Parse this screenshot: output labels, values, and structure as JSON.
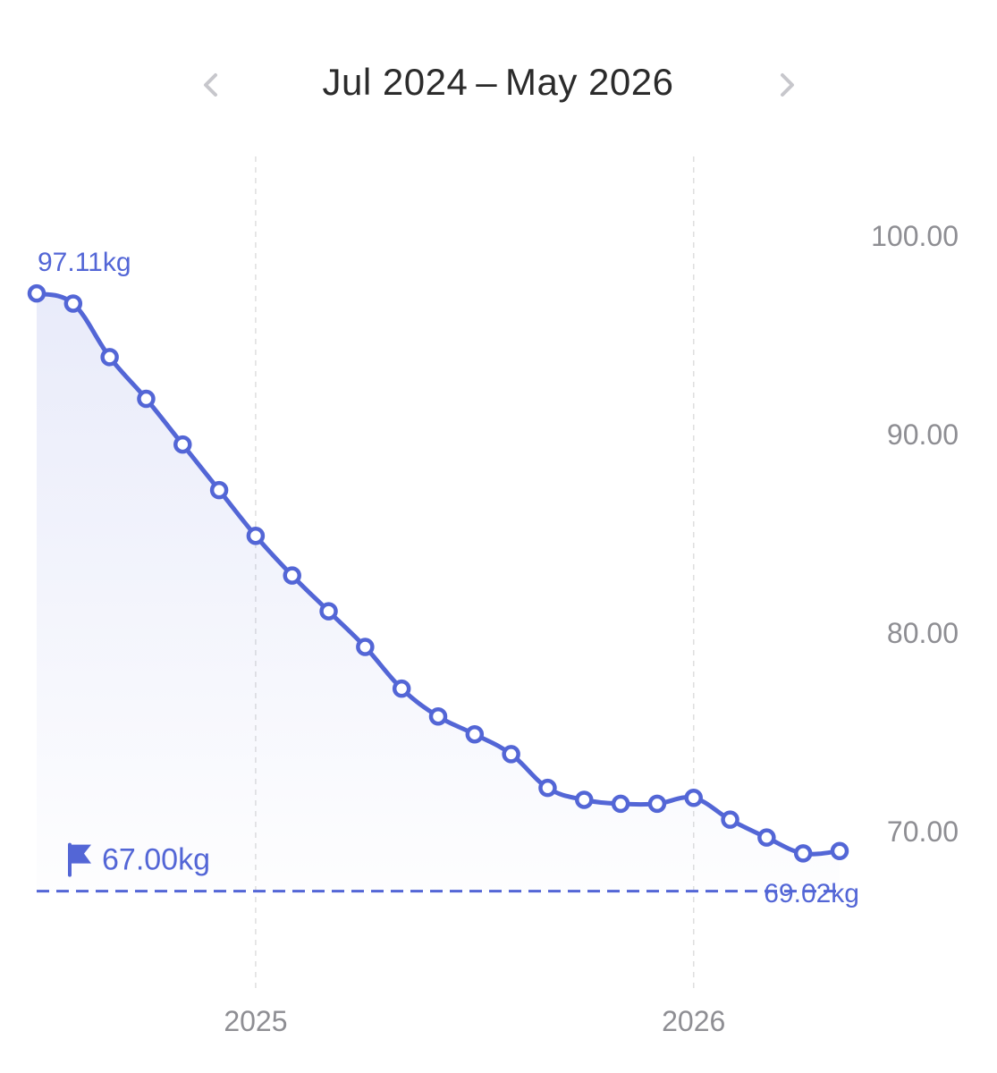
{
  "header": {
    "range_label": "Jul 2024 – May 2026",
    "prev_icon": "chevron-left-icon",
    "next_icon": "chevron-right-icon"
  },
  "colors": {
    "accent": "#5366d6",
    "nav_icon": "#c7c7cc",
    "axis_text": "#8e8e93",
    "grid": "#dedede"
  },
  "chart_data": {
    "type": "line",
    "unit": "kg",
    "x": [
      "2024-07",
      "2024-08",
      "2024-09",
      "2024-10",
      "2024-11",
      "2024-12",
      "2025-01",
      "2025-02",
      "2025-03",
      "2025-04",
      "2025-05",
      "2025-06",
      "2025-07",
      "2025-08",
      "2025-09",
      "2025-10",
      "2025-11",
      "2025-12",
      "2026-01",
      "2026-02",
      "2026-03",
      "2026-04",
      "2026-05"
    ],
    "series": [
      {
        "values": [
          97.11,
          96.6,
          93.9,
          91.8,
          89.5,
          87.2,
          84.9,
          82.9,
          81.1,
          79.3,
          77.2,
          75.8,
          74.9,
          73.9,
          72.2,
          71.6,
          71.4,
          71.4,
          71.7,
          70.6,
          69.7,
          68.9,
          69.02
        ]
      }
    ],
    "goal": 67.0,
    "goal_label": "67.00kg",
    "first_label": "97.11kg",
    "last_label": "69.02kg",
    "y_ticks": [
      "100.00",
      "90.00",
      "80.00",
      "70.00"
    ],
    "y_tick_values": [
      100,
      90,
      80,
      70
    ],
    "x_ticks": [
      "2025",
      "2026"
    ],
    "x_tick_dates": [
      "2025-01",
      "2026-01"
    ],
    "ylim": [
      62,
      105
    ],
    "grid": "vertical dashed at year boundaries",
    "y_axis_side": "right"
  }
}
